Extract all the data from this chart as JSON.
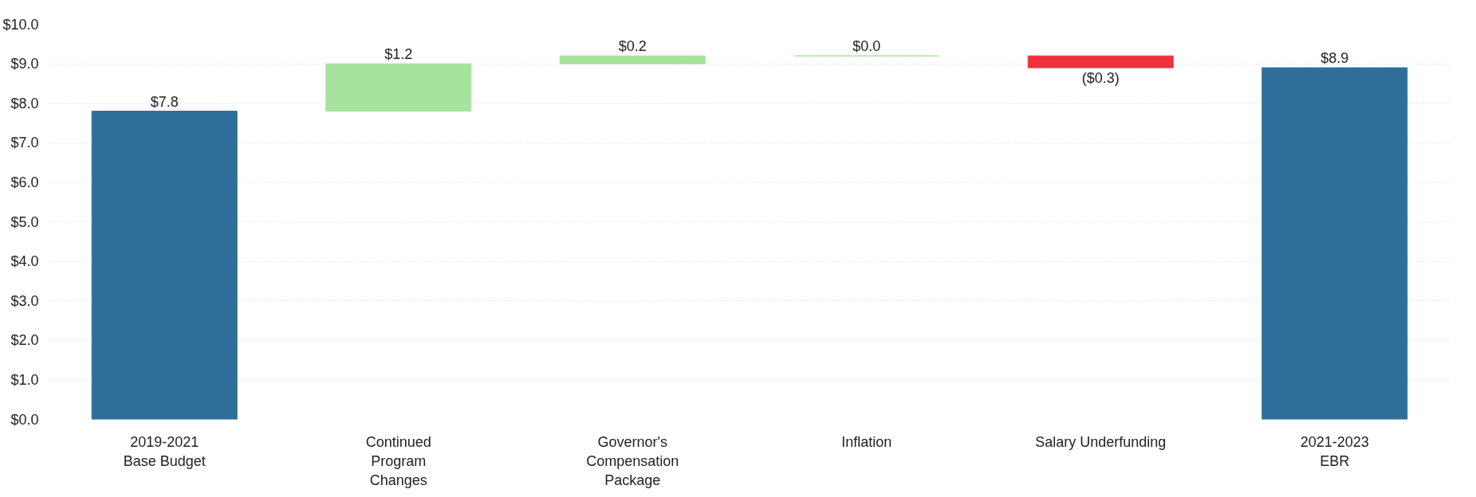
{
  "chart_data": {
    "type": "bar",
    "categories": [
      "2019-2021\nBase Budget",
      "Continued\nProgram\nChanges",
      "Governor's\nCompensation\nPackage",
      "Inflation",
      "Salary Underfunding",
      "2021-2023\nEBR"
    ],
    "values": [
      7.8,
      1.2,
      0.2,
      0.0,
      -0.3,
      8.9
    ],
    "base": [
      0,
      7.8,
      9.0,
      9.2,
      9.2,
      0
    ],
    "colors": [
      "#2e6f9a",
      "#a6e39c",
      "#a6e39c",
      "#a6e39c",
      "#f0303c",
      "#2e6f9a"
    ],
    "value_labels": [
      "$7.8",
      "$1.2",
      "$0.2",
      "$0.0",
      "($0.3)",
      "$8.9"
    ],
    "ylim": [
      0,
      10
    ],
    "yticks": [
      {
        "value": 0,
        "label": "$0.0"
      },
      {
        "value": 1,
        "label": "$1.0"
      },
      {
        "value": 2,
        "label": "$2.0"
      },
      {
        "value": 3,
        "label": "$3.0"
      },
      {
        "value": 4,
        "label": "$4.0"
      },
      {
        "value": 5,
        "label": "$5.0"
      },
      {
        "value": 6,
        "label": "$6.0"
      },
      {
        "value": 7,
        "label": "$7.0"
      },
      {
        "value": 8,
        "label": "$8.0"
      },
      {
        "value": 9,
        "label": "$9.0"
      },
      {
        "value": 10,
        "label": "$10.0"
      }
    ],
    "grid": "y"
  }
}
